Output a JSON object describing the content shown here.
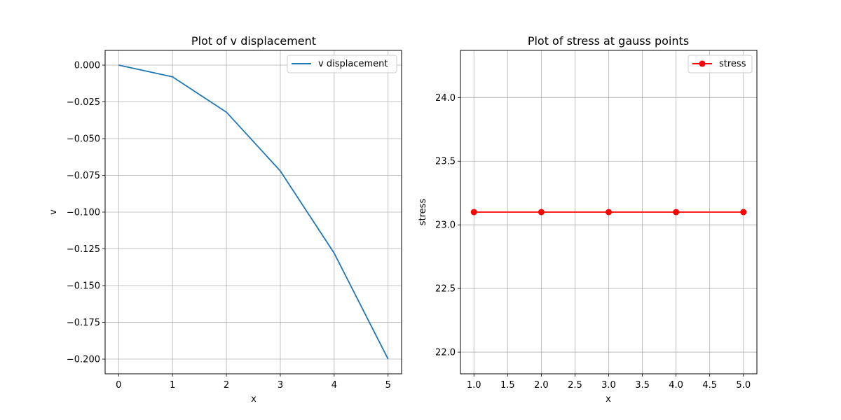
{
  "chart_data": [
    {
      "type": "line",
      "title": "Plot of v displacement",
      "xlabel": "x",
      "ylabel": "v",
      "xlim": [
        -0.25,
        5.25
      ],
      "ylim": [
        -0.21,
        0.01
      ],
      "xticks": [
        0,
        1,
        2,
        3,
        4,
        5
      ],
      "xtick_labels": [
        "0",
        "1",
        "2",
        "3",
        "4",
        "5"
      ],
      "yticks": [
        0.0,
        -0.025,
        -0.05,
        -0.075,
        -0.1,
        -0.125,
        -0.15,
        -0.175,
        -0.2
      ],
      "ytick_labels": [
        "0.000",
        "−0.025",
        "−0.050",
        "−0.075",
        "−0.100",
        "−0.125",
        "−0.150",
        "−0.175",
        "−0.200"
      ],
      "grid": true,
      "legend": "upper-right",
      "series": [
        {
          "name": "v displacement",
          "color": "#1f77b4",
          "marker": "none",
          "x": [
            0,
            1,
            2,
            3,
            4,
            5
          ],
          "y": [
            0.0,
            -0.008,
            -0.032,
            -0.072,
            -0.128,
            -0.2
          ]
        }
      ]
    },
    {
      "type": "line",
      "title": "Plot of stress at gauss points",
      "xlabel": "x",
      "ylabel": "stress",
      "xlim": [
        0.8,
        5.2
      ],
      "ylim": [
        21.83,
        24.37
      ],
      "xticks": [
        1.0,
        1.5,
        2.0,
        2.5,
        3.0,
        3.5,
        4.0,
        4.5,
        5.0
      ],
      "xtick_labels": [
        "1.0",
        "1.5",
        "2.0",
        "2.5",
        "3.0",
        "3.5",
        "4.0",
        "4.5",
        "5.0"
      ],
      "yticks": [
        22.0,
        22.5,
        23.0,
        23.5,
        24.0
      ],
      "ytick_labels": [
        "22.0",
        "22.5",
        "23.0",
        "23.5",
        "24.0"
      ],
      "grid": true,
      "legend": "upper-right",
      "series": [
        {
          "name": "stress",
          "color": "#ff0000",
          "marker": "circle",
          "x": [
            1,
            2,
            3,
            4,
            5
          ],
          "y": [
            23.1,
            23.1,
            23.1,
            23.1,
            23.1
          ]
        }
      ]
    }
  ]
}
